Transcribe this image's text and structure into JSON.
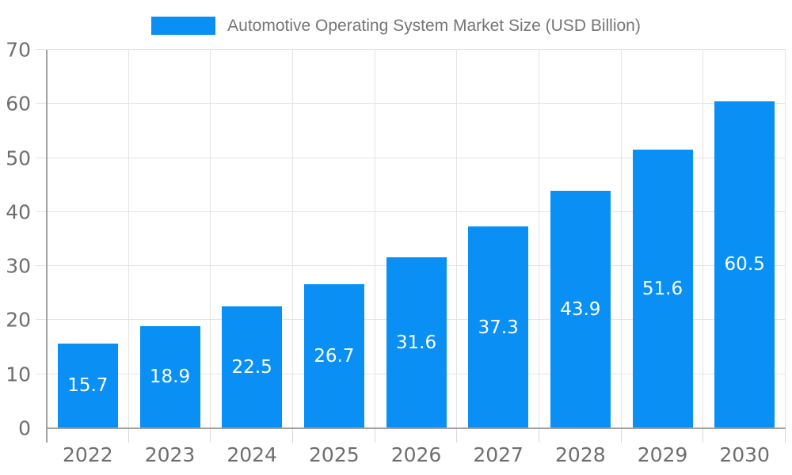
{
  "legend": {
    "series_label": "Automotive Operating System Market Size (USD Billion)"
  },
  "chart_data": {
    "type": "bar",
    "title": "Automotive Operating System Market Size (USD Billion)",
    "categories": [
      "2022",
      "2023",
      "2024",
      "2025",
      "2026",
      "2027",
      "2028",
      "2029",
      "2030"
    ],
    "values": [
      15.7,
      18.9,
      22.5,
      26.7,
      31.6,
      37.3,
      43.9,
      51.6,
      60.5
    ],
    "xlabel": "",
    "ylabel": "",
    "ylim": [
      0,
      70
    ],
    "y_ticks": [
      0,
      10,
      20,
      30,
      40,
      50,
      60,
      70
    ],
    "grid": true,
    "legend_position": "top-center",
    "value_labels": "inside-middle"
  },
  "colors": {
    "bar": "#0a90f5",
    "grid": "#e4e4e4",
    "tick": "#d9d9d9",
    "axis": "#a0a0a0",
    "tick_text": "#6e6e6e",
    "title_text": "#757575",
    "value_text": "#ffffff",
    "background": "#ffffff"
  }
}
